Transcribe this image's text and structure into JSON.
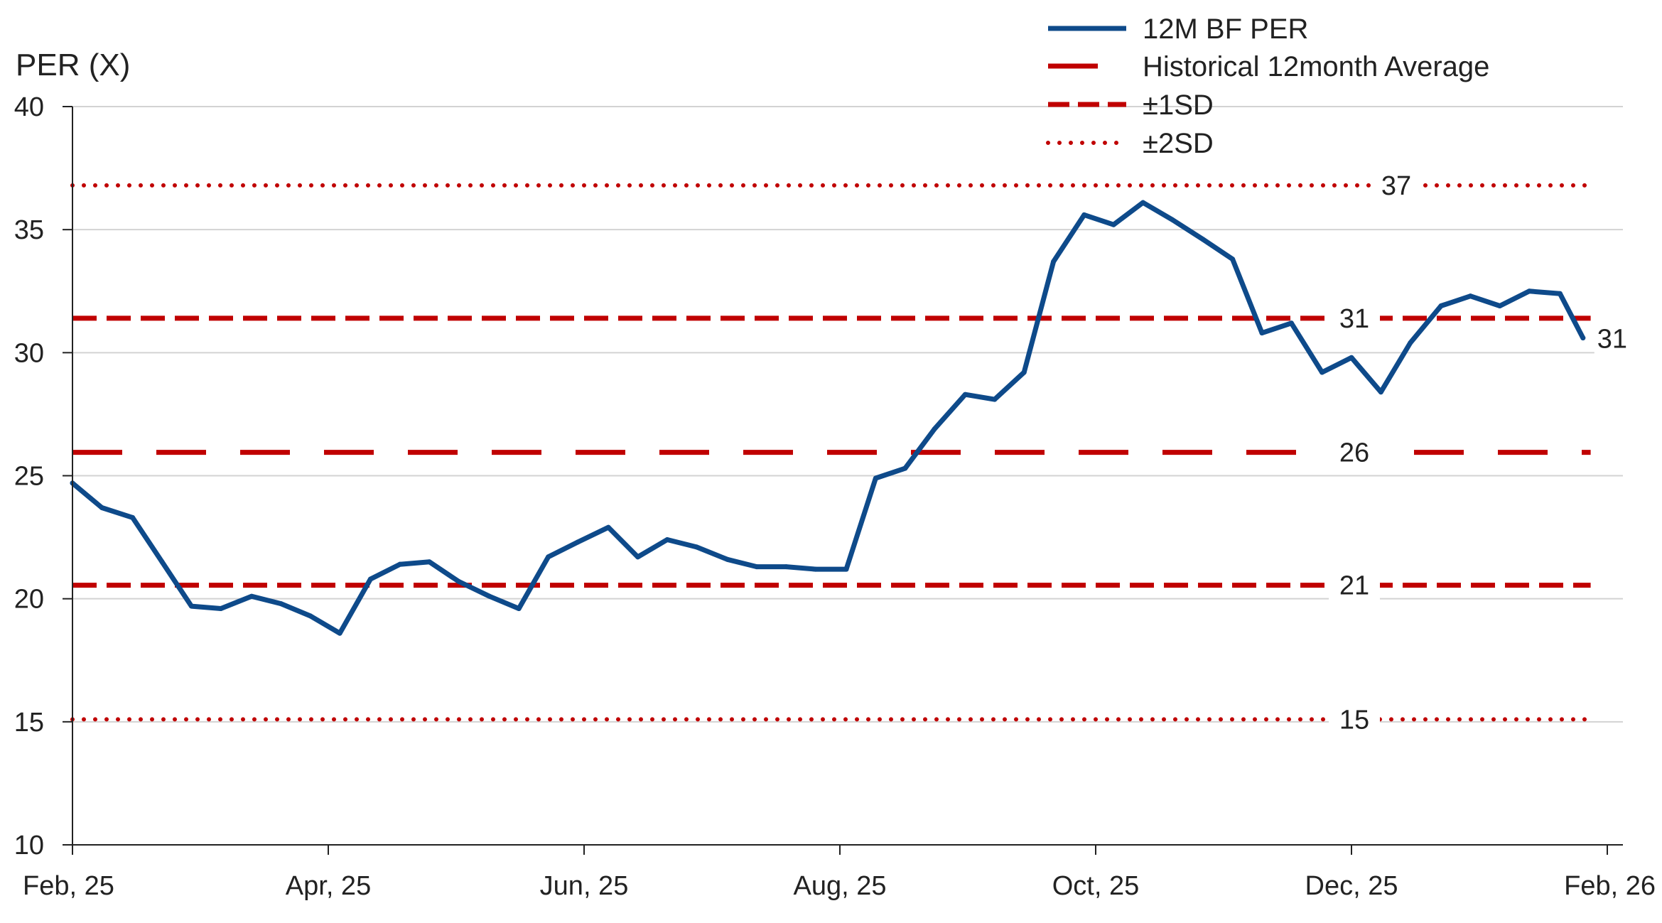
{
  "chart_data": {
    "type": "line",
    "ylabel": "PER (X)",
    "xlabel": "",
    "title": "",
    "ylim": [
      10,
      40
    ],
    "y_ticks": [
      10,
      15,
      20,
      25,
      30,
      35,
      40
    ],
    "x_range": [
      0,
      12
    ],
    "x_ticks": [
      {
        "pos": 0,
        "label": "Feb, 25"
      },
      {
        "pos": 2,
        "label": "Apr, 25"
      },
      {
        "pos": 4,
        "label": "Jun, 25"
      },
      {
        "pos": 6,
        "label": "Aug, 25"
      },
      {
        "pos": 8,
        "label": "Oct, 25"
      },
      {
        "pos": 10,
        "label": "Dec, 25"
      },
      {
        "pos": 12,
        "label": "Feb, 26"
      }
    ],
    "gridlines": "horizontal",
    "legend_position": "top-right",
    "series": [
      {
        "name": "12M BF PER",
        "color": "#0e4a8a",
        "style": "solid",
        "end_label": "31",
        "x": [
          0,
          0.23,
          0.47,
          0.7,
          0.93,
          1.16,
          1.4,
          1.63,
          1.86,
          2.09,
          2.33,
          2.56,
          2.79,
          3.02,
          3.26,
          3.49,
          3.72,
          3.95,
          4.19,
          4.42,
          4.65,
          4.88,
          5.12,
          5.35,
          5.58,
          5.81,
          6.05,
          6.28,
          6.51,
          6.74,
          6.98,
          7.21,
          7.44,
          7.67,
          7.91,
          8.14,
          8.37,
          8.6,
          8.84,
          9.07,
          9.3,
          9.53,
          9.77,
          10.0,
          10.23,
          10.46,
          10.7,
          10.93,
          11.16,
          11.39,
          11.63,
          11.81
        ],
        "values": [
          24.7,
          23.7,
          23.3,
          21.5,
          19.7,
          19.6,
          20.1,
          19.8,
          19.3,
          18.6,
          20.8,
          21.4,
          21.5,
          20.7,
          20.1,
          19.6,
          21.7,
          22.3,
          22.9,
          21.7,
          22.4,
          22.1,
          21.6,
          21.3,
          21.3,
          21.2,
          21.2,
          24.9,
          25.3,
          26.9,
          28.3,
          28.1,
          29.2,
          33.7,
          35.6,
          35.2,
          36.1,
          35.4,
          34.6,
          33.8,
          30.8,
          31.2,
          29.2,
          29.8,
          28.4,
          30.4,
          31.9,
          32.3,
          31.9,
          32.5,
          32.4,
          30.6
        ]
      }
    ],
    "reference_lines": [
      {
        "name": "+2SD",
        "value": 36.8,
        "label": "37",
        "style": "dotted",
        "color": "#c00000"
      },
      {
        "name": "+1SD",
        "value": 31.4,
        "label": "31",
        "style": "dashed",
        "color": "#c00000"
      },
      {
        "name": "Historical 12month Average",
        "value": 25.95,
        "label": "26",
        "style": "dashdot",
        "color": "#c00000"
      },
      {
        "name": "-1SD",
        "value": 20.55,
        "label": "21",
        "style": "dashed",
        "color": "#c00000"
      },
      {
        "name": "-2SD",
        "value": 15.1,
        "label": "15",
        "style": "dotted",
        "color": "#c00000"
      }
    ],
    "legend": [
      {
        "label": "12M BF PER",
        "style": "solid",
        "color": "#0e4a8a"
      },
      {
        "label": "Historical 12month Average",
        "style": "dashdot",
        "color": "#c00000"
      },
      {
        "label": "±1SD",
        "style": "dashed",
        "color": "#c00000"
      },
      {
        "label": "±2SD",
        "style": "dotted",
        "color": "#c00000"
      }
    ]
  }
}
